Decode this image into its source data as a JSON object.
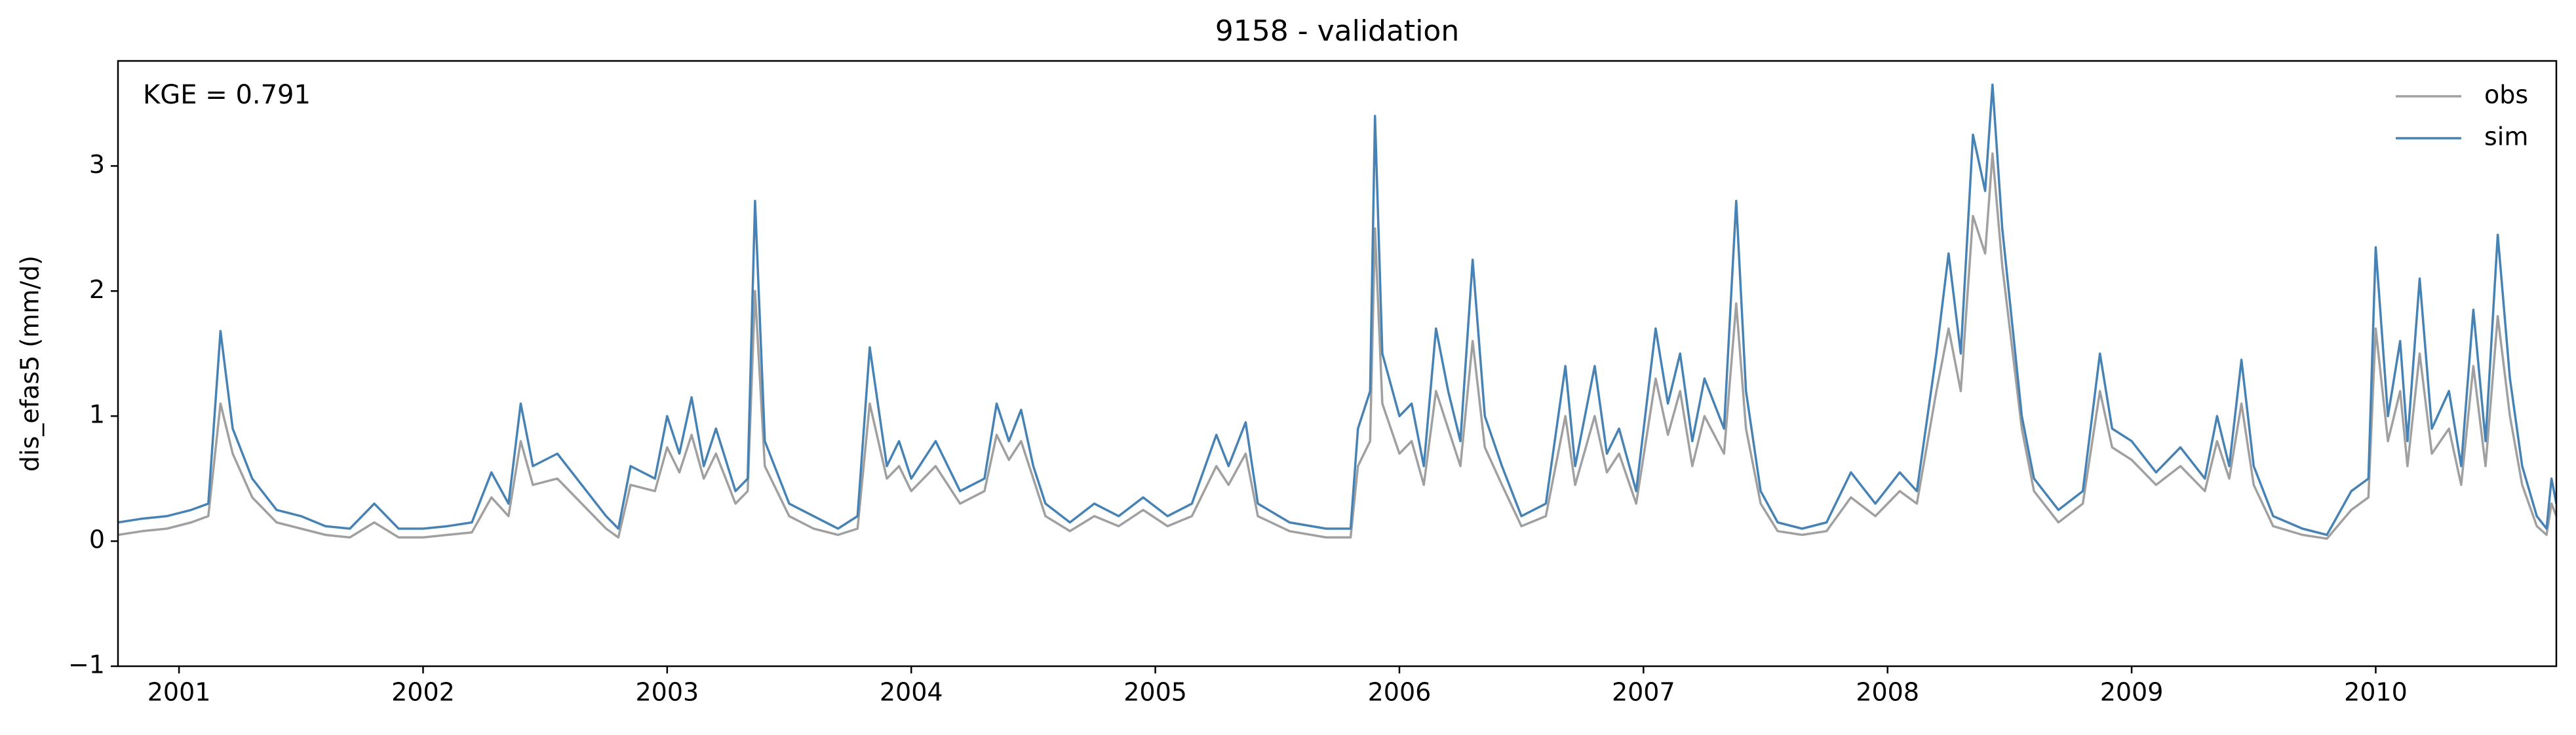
{
  "chart_data": {
    "type": "line",
    "title": "9158 - validation",
    "ylabel": "dis_efas5 (mm/d)",
    "annotation": "KGE = 0.791",
    "legend": "upper right",
    "xlim": [
      2000.75,
      2010.74
    ],
    "ylim": [
      -1,
      3.84
    ],
    "xticks": [
      2001,
      2002,
      2003,
      2004,
      2005,
      2006,
      2007,
      2008,
      2009,
      2010
    ],
    "yticks": [
      {
        "value": -1,
        "label": "−1"
      },
      0,
      1,
      2,
      3
    ],
    "x": [
      2000.75,
      2000.85,
      2000.95,
      2001.05,
      2001.12,
      2001.17,
      2001.22,
      2001.3,
      2001.4,
      2001.5,
      2001.6,
      2001.7,
      2001.8,
      2001.9,
      2002.0,
      2002.1,
      2002.2,
      2002.28,
      2002.35,
      2002.4,
      2002.45,
      2002.55,
      2002.65,
      2002.75,
      2002.8,
      2002.85,
      2002.95,
      2003.0,
      2003.05,
      2003.1,
      2003.15,
      2003.2,
      2003.28,
      2003.33,
      2003.36,
      2003.4,
      2003.5,
      2003.6,
      2003.7,
      2003.78,
      2003.83,
      2003.9,
      2003.95,
      2004.0,
      2004.1,
      2004.2,
      2004.3,
      2004.35,
      2004.4,
      2004.45,
      2004.5,
      2004.55,
      2004.65,
      2004.75,
      2004.85,
      2004.95,
      2005.05,
      2005.15,
      2005.25,
      2005.3,
      2005.37,
      2005.42,
      2005.55,
      2005.7,
      2005.8,
      2005.83,
      2005.88,
      2005.9,
      2005.93,
      2006.0,
      2006.05,
      2006.1,
      2006.15,
      2006.2,
      2006.25,
      2006.3,
      2006.35,
      2006.42,
      2006.5,
      2006.6,
      2006.68,
      2006.72,
      2006.8,
      2006.85,
      2006.9,
      2006.97,
      2007.05,
      2007.1,
      2007.15,
      2007.2,
      2007.25,
      2007.33,
      2007.38,
      2007.42,
      2007.48,
      2007.55,
      2007.65,
      2007.75,
      2007.85,
      2007.95,
      2008.05,
      2008.12,
      2008.2,
      2008.25,
      2008.3,
      2008.35,
      2008.4,
      2008.43,
      2008.47,
      2008.55,
      2008.6,
      2008.7,
      2008.8,
      2008.87,
      2008.92,
      2009.0,
      2009.1,
      2009.2,
      2009.3,
      2009.35,
      2009.4,
      2009.45,
      2009.5,
      2009.58,
      2009.7,
      2009.8,
      2009.9,
      2009.97,
      2010.0,
      2010.05,
      2010.1,
      2010.13,
      2010.18,
      2010.23,
      2010.3,
      2010.35,
      2010.4,
      2010.45,
      2010.5,
      2010.55,
      2010.6,
      2010.66,
      2010.7,
      2010.72,
      2010.74
    ],
    "series": [
      {
        "name": "obs",
        "color": "#a0a0a0",
        "values": [
          0.05,
          0.08,
          0.1,
          0.15,
          0.2,
          1.1,
          0.7,
          0.35,
          0.15,
          0.1,
          0.05,
          0.03,
          0.15,
          0.03,
          0.03,
          0.05,
          0.07,
          0.35,
          0.2,
          0.8,
          0.45,
          0.5,
          0.3,
          0.1,
          0.03,
          0.45,
          0.4,
          0.75,
          0.55,
          0.85,
          0.5,
          0.7,
          0.3,
          0.4,
          2.0,
          0.6,
          0.2,
          0.1,
          0.05,
          0.1,
          1.1,
          0.5,
          0.6,
          0.4,
          0.6,
          0.3,
          0.4,
          0.85,
          0.65,
          0.8,
          0.5,
          0.2,
          0.08,
          0.2,
          0.12,
          0.25,
          0.12,
          0.2,
          0.6,
          0.45,
          0.7,
          0.2,
          0.08,
          0.03,
          0.03,
          0.6,
          0.8,
          2.5,
          1.1,
          0.7,
          0.8,
          0.45,
          1.2,
          0.9,
          0.6,
          1.6,
          0.75,
          0.45,
          0.12,
          0.2,
          1.0,
          0.45,
          1.0,
          0.55,
          0.7,
          0.3,
          1.3,
          0.85,
          1.2,
          0.6,
          1.0,
          0.7,
          1.9,
          0.9,
          0.3,
          0.08,
          0.05,
          0.08,
          0.35,
          0.2,
          0.4,
          0.3,
          1.2,
          1.7,
          1.2,
          2.6,
          2.3,
          3.1,
          2.2,
          0.9,
          0.4,
          0.15,
          0.3,
          1.2,
          0.75,
          0.65,
          0.45,
          0.6,
          0.4,
          0.8,
          0.5,
          1.1,
          0.45,
          0.12,
          0.05,
          0.02,
          0.25,
          0.35,
          1.7,
          0.8,
          1.2,
          0.6,
          1.5,
          0.7,
          0.9,
          0.45,
          1.4,
          0.6,
          1.8,
          1.0,
          0.45,
          0.12,
          0.05,
          0.3,
          0.2
        ]
      },
      {
        "name": "sim",
        "color": "#4682b4",
        "values": [
          0.15,
          0.18,
          0.2,
          0.25,
          0.3,
          1.68,
          0.9,
          0.5,
          0.25,
          0.2,
          0.12,
          0.1,
          0.3,
          0.1,
          0.1,
          0.12,
          0.15,
          0.55,
          0.3,
          1.1,
          0.6,
          0.7,
          0.45,
          0.2,
          0.1,
          0.6,
          0.5,
          1.0,
          0.7,
          1.15,
          0.6,
          0.9,
          0.4,
          0.5,
          2.72,
          0.8,
          0.3,
          0.2,
          0.1,
          0.2,
          1.55,
          0.6,
          0.8,
          0.5,
          0.8,
          0.4,
          0.5,
          1.1,
          0.8,
          1.05,
          0.6,
          0.3,
          0.15,
          0.3,
          0.2,
          0.35,
          0.2,
          0.3,
          0.85,
          0.6,
          0.95,
          0.3,
          0.15,
          0.1,
          0.1,
          0.9,
          1.2,
          3.4,
          1.5,
          1.0,
          1.1,
          0.6,
          1.7,
          1.2,
          0.8,
          2.25,
          1.0,
          0.6,
          0.2,
          0.3,
          1.4,
          0.6,
          1.4,
          0.7,
          0.9,
          0.4,
          1.7,
          1.1,
          1.5,
          0.8,
          1.3,
          0.9,
          2.72,
          1.2,
          0.4,
          0.15,
          0.1,
          0.15,
          0.55,
          0.3,
          0.55,
          0.4,
          1.5,
          2.3,
          1.5,
          3.25,
          2.8,
          3.65,
          2.5,
          1.0,
          0.5,
          0.25,
          0.4,
          1.5,
          0.9,
          0.8,
          0.55,
          0.75,
          0.5,
          1.0,
          0.6,
          1.45,
          0.6,
          0.2,
          0.1,
          0.05,
          0.4,
          0.5,
          2.35,
          1.0,
          1.6,
          0.8,
          2.1,
          0.9,
          1.2,
          0.6,
          1.85,
          0.8,
          2.45,
          1.3,
          0.6,
          0.2,
          0.1,
          0.5,
          0.3
        ]
      }
    ]
  }
}
